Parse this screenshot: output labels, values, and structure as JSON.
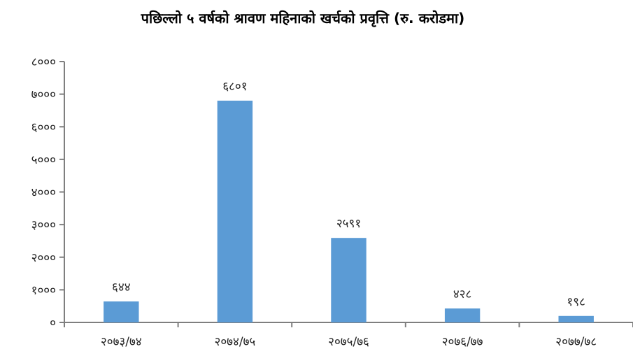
{
  "chart_data": {
    "type": "bar",
    "title": "पछिल्लो ५ वर्षको श्रावण महिनाको खर्चको प्रवृत्ति (रु. करोडमा)",
    "xlabel": "",
    "ylabel": "",
    "categories": [
      "२०७३/७४",
      "२०७४/७५",
      "२०७५/७६",
      "२०७६/७७",
      "२०७७/७८"
    ],
    "values": [
      644,
      6801,
      2591,
      428,
      198
    ],
    "value_labels": [
      "६४४",
      "६८०१",
      "२५९१",
      "४२८",
      "१९८"
    ],
    "ylim": [
      0,
      8000
    ],
    "yticks": [
      0,
      1000,
      2000,
      3000,
      4000,
      5000,
      6000,
      7000,
      8000
    ],
    "ytick_labels": [
      "०",
      "१०००",
      "२०००",
      "३०००",
      "४०००",
      "५०००",
      "६०००",
      "७०००",
      "८०००"
    ],
    "grid": false,
    "legend": "none",
    "bar_color": "#5b9bd5"
  }
}
